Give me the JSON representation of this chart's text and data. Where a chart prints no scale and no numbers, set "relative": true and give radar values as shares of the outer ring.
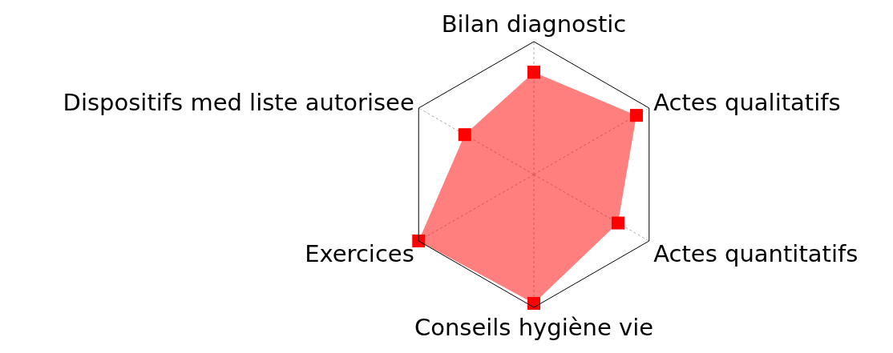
{
  "chart_data": {
    "type": "radar",
    "relative": true,
    "categories": [
      "Bilan diagnostic",
      "Actes qualitatifs",
      "Actes quantitatifs",
      "Conseils hygiène vie",
      "Exercices",
      "Dispositifs med liste autorisee"
    ],
    "series": [
      {
        "color": "#ff0000",
        "values": [
          0.77,
          0.89,
          0.73,
          0.97,
          1,
          0.6
        ]
      }
    ],
    "marker": "square",
    "grid": true
  }
}
